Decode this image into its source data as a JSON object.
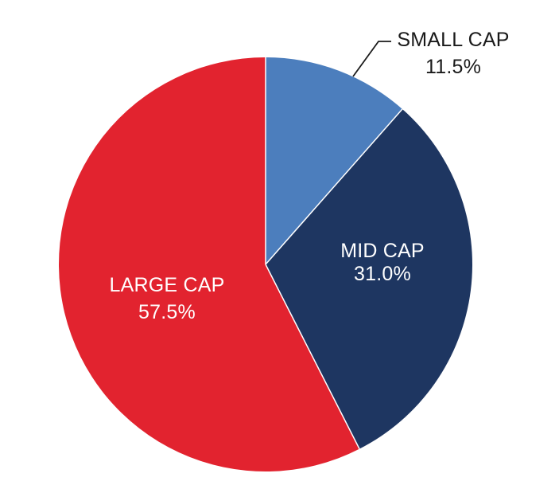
{
  "chart_data": {
    "type": "pie",
    "title": "",
    "slices": [
      {
        "label": "SMALL CAP",
        "value_label": "11.5%",
        "value": 11.5,
        "color": "#4C7EBD",
        "label_color": "#1a1a1a",
        "label_position": "outside"
      },
      {
        "label": "MID CAP",
        "value_label": "31.0%",
        "value": 31.0,
        "color": "#1E3661",
        "label_color": "#ffffff",
        "label_position": "inside"
      },
      {
        "label": "LARGE CAP",
        "value_label": "57.5%",
        "value": 57.5,
        "color": "#E2232F",
        "label_color": "#ffffff",
        "label_position": "inside"
      }
    ],
    "start_angle": "12 o'clock",
    "direction": "clockwise",
    "legend": "none",
    "grid": false
  }
}
